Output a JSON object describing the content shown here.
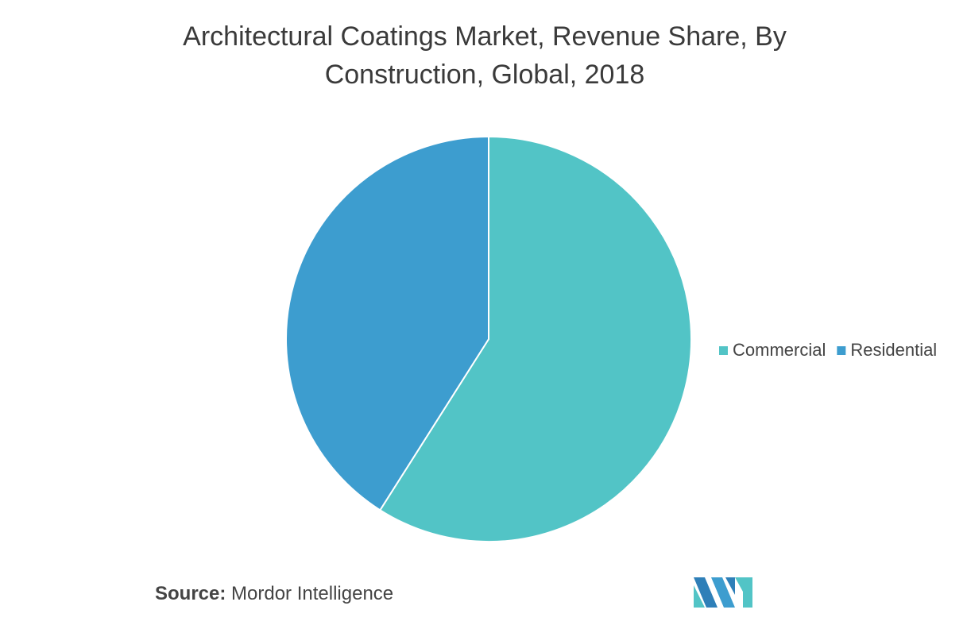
{
  "chart_data": {
    "type": "pie",
    "title": "Architectural Coatings Market, Revenue Share, By Construction, Global, 2018",
    "categories": [
      "Commercial",
      "Residential"
    ],
    "values": [
      59,
      41
    ],
    "colors": [
      "#52c4c6",
      "#3d9dcf"
    ]
  },
  "footer": {
    "source_label": "Source:",
    "source_text": "Mordor Intelligence"
  }
}
